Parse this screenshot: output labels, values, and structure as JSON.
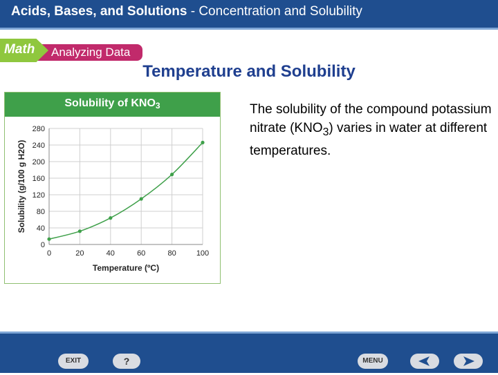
{
  "header": {
    "title_bold": "Acids, Bases, and Solutions",
    "title_rest": " - Concentration and Solubility"
  },
  "badge": {
    "left": "Math",
    "right": "Analyzing Data"
  },
  "slide_title": "Temperature and Solubility",
  "description": {
    "before": "The solubility of the compound potassium nitrate (KNO",
    "subscript": "3",
    "after": ") varies in water at different temperatures."
  },
  "chart_data": {
    "type": "line",
    "title": "Solubility of KNO3",
    "xlabel": "Temperature (ºC)",
    "ylabel": "Solubility (g/100 g H2O)",
    "x": [
      0,
      20,
      40,
      60,
      80,
      100
    ],
    "series": [
      {
        "values": [
          13,
          32,
          64,
          110,
          169,
          246
        ]
      }
    ],
    "xlim": [
      0,
      100
    ],
    "ylim": [
      0,
      280
    ],
    "xticks": [
      "0",
      "20",
      "40",
      "60",
      "80",
      "100"
    ],
    "yticks": [
      "0",
      "40",
      "80",
      "120",
      "160",
      "200",
      "240",
      "280"
    ],
    "grid": true,
    "line_color": "#3fa04a"
  },
  "footer": {
    "exit": "EXIT",
    "help": "?",
    "menu": "MENU",
    "prev_icon": "left-arrow-icon",
    "next_icon": "right-arrow-icon"
  }
}
